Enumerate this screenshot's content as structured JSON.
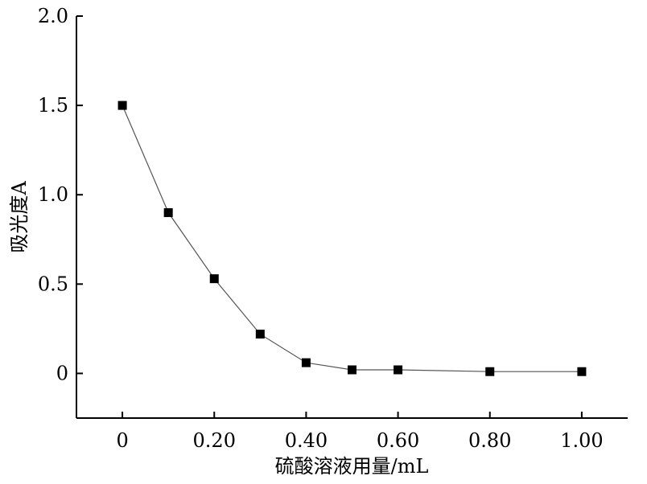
{
  "chart_data": {
    "type": "line",
    "title": "",
    "xlabel": "硫酸溶液用量/mL",
    "ylabel": "吸光度A",
    "xlim": [
      -0.1,
      1.1
    ],
    "ylim": [
      -0.25,
      2.0
    ],
    "x_ticks": [
      {
        "value": 0,
        "label": "0"
      },
      {
        "value": 0.2,
        "label": "0.20"
      },
      {
        "value": 0.4,
        "label": "0.40"
      },
      {
        "value": 0.6,
        "label": "0.60"
      },
      {
        "value": 0.8,
        "label": "0.80"
      },
      {
        "value": 1.0,
        "label": "1.00"
      }
    ],
    "y_ticks": [
      {
        "value": 0,
        "label": "0"
      },
      {
        "value": 0.5,
        "label": "0.5"
      },
      {
        "value": 1.0,
        "label": "1.0"
      },
      {
        "value": 1.5,
        "label": "1.5"
      },
      {
        "value": 2.0,
        "label": "2.0"
      }
    ],
    "grid": false,
    "marker": "square",
    "line_color": "#555555",
    "marker_color": "#000000",
    "series": [
      {
        "x": [
          0,
          0.1,
          0.2,
          0.3,
          0.4,
          0.5,
          0.6,
          0.8,
          1.0
        ],
        "y": [
          1.5,
          0.9,
          0.53,
          0.22,
          0.06,
          0.02,
          0.02,
          0.01,
          0.01
        ]
      }
    ]
  }
}
